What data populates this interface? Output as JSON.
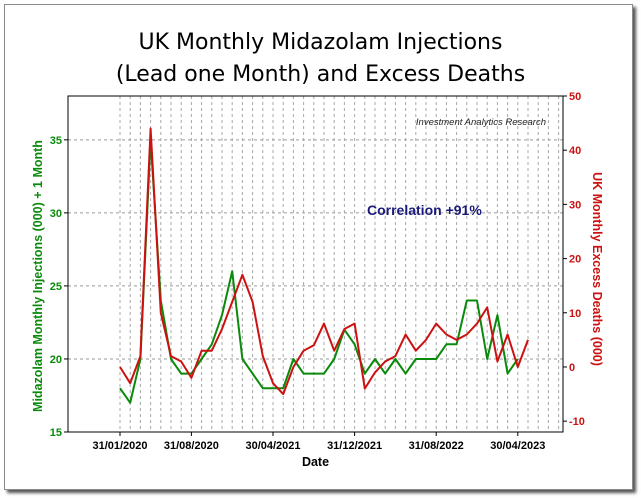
{
  "chart_data": {
    "type": "line",
    "title": "UK Monthly Midazolam Injections",
    "subtitle": "(Lead one Month) and Excess Deaths",
    "xlabel": "Date",
    "ylabel": "Midazolam Monthly Injections (000) + 1 Month",
    "y2label": "UK Monthly Excess Deaths (000)",
    "annotation": "Correlation +91%",
    "source": "Investment Analytics Research",
    "x_ticks": [
      "31/01/2020",
      "31/08/2020",
      "30/04/2021",
      "31/12/2021",
      "31/08/2022",
      "30/04/2023"
    ],
    "x_tick_index": [
      0,
      7,
      15,
      23,
      31,
      39
    ],
    "ylim": [
      15,
      38
    ],
    "y_ticks": [
      15,
      20,
      25,
      30,
      35
    ],
    "y2lim": [
      -12,
      50
    ],
    "y2_ticks": [
      -10,
      0,
      10,
      20,
      30,
      40,
      50
    ],
    "grid": true,
    "series": [
      {
        "axis": "left",
        "color": "#0a8a0a",
        "values": [
          18,
          17,
          20,
          35,
          24,
          20,
          19,
          19,
          20,
          21,
          23,
          26,
          20,
          19,
          18,
          18,
          18,
          20,
          19,
          19,
          19,
          20,
          22,
          21,
          19,
          20,
          19,
          20,
          19,
          20,
          20,
          20,
          21,
          21,
          24,
          24,
          20,
          23,
          19,
          20
        ]
      },
      {
        "axis": "right",
        "color": "#cc1111",
        "values": [
          0,
          -3,
          2,
          44,
          10,
          2,
          1,
          -2,
          3,
          3,
          7,
          12,
          17,
          12,
          2,
          -3,
          -5,
          0,
          3,
          4,
          8,
          3,
          7,
          8,
          -4,
          -1,
          1,
          2,
          6,
          3,
          5,
          8,
          6,
          5,
          6,
          8,
          11,
          1,
          6,
          0,
          5
        ]
      }
    ]
  }
}
